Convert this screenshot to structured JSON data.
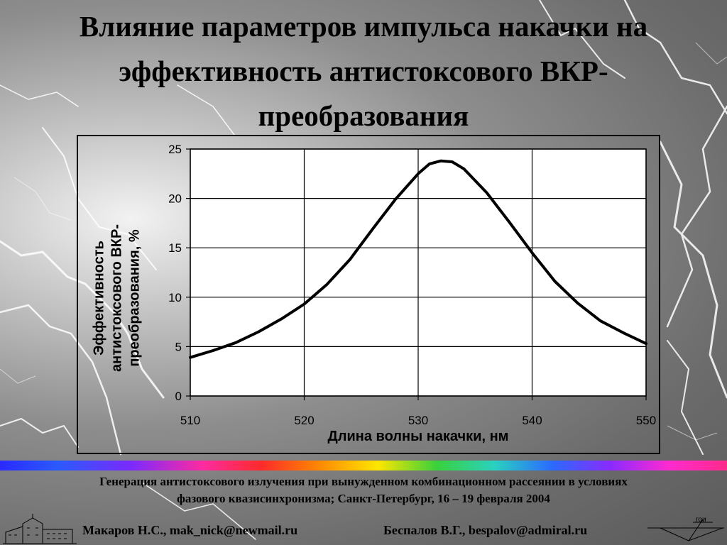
{
  "slide": {
    "title_line1": "Влияние параметров импульса накачки на",
    "title_line2": "эффективность антистоксового ВКР-",
    "title_line3": "преобразования",
    "conference_line1": "Генерация антистоксового излучения при вынужденном комбинационном рассеянии в условиях",
    "conference_line2": "фазового квазисинхронизма; Санкт-Петербург, 16 – 19 февраля  2004",
    "author1": "Макаров Н.С., mak_nick@newmail.ru",
    "author2": "Беспалов В.Г., bespalov@admiral.ru",
    "logo_text": "гои"
  },
  "chart_data": {
    "type": "line",
    "xlabel": "Длина волны накачки, нм",
    "ylabel_lines": [
      "Эффективность",
      "антистоксового ВКР-",
      "преобразования, %"
    ],
    "xlim": [
      510,
      550
    ],
    "ylim": [
      0,
      25
    ],
    "xticks": [
      "510",
      "520",
      "530",
      "540",
      "550"
    ],
    "yticks": [
      "0",
      "5",
      "10",
      "15",
      "20",
      "25"
    ],
    "grid": true,
    "series": [
      {
        "x": [
          510,
          512,
          514,
          516,
          518,
          520,
          522,
          524,
          526,
          528,
          530,
          531,
          532,
          533,
          534,
          536,
          538,
          540,
          542,
          544,
          546,
          548,
          550
        ],
        "y": [
          3.9,
          4.6,
          5.4,
          6.5,
          7.8,
          9.3,
          11.3,
          13.8,
          16.9,
          19.9,
          22.5,
          23.5,
          23.8,
          23.7,
          23.0,
          20.6,
          17.6,
          14.5,
          11.6,
          9.4,
          7.6,
          6.4,
          5.3
        ]
      }
    ]
  },
  "colors": {
    "line": "#000000",
    "grid": "#000000",
    "plot_background": "#ffffff"
  }
}
